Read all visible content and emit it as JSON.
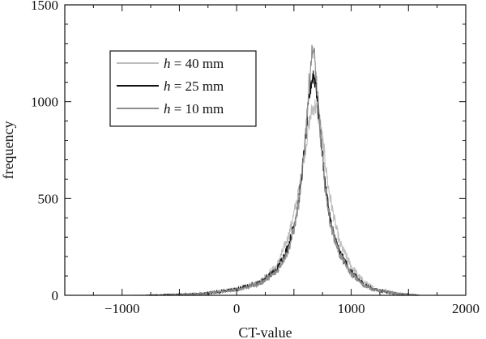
{
  "chart_data": {
    "type": "line",
    "title": "",
    "xlabel": "CT-value",
    "ylabel": "frequency",
    "xlim": [
      -1500,
      2000
    ],
    "ylim": [
      0,
      1500
    ],
    "xticks": [
      -1000,
      0,
      1000,
      2000
    ],
    "yticks": [
      0,
      500,
      1000,
      1500
    ],
    "x_tick_labels": [
      "−1000",
      "0",
      "1000",
      "2000"
    ],
    "y_tick_labels": [
      "0",
      "500",
      "1000",
      "1500"
    ],
    "grid": false,
    "legend_position": "top-left",
    "series": [
      {
        "label_var": "h",
        "label_rest": " = 40 mm",
        "color": "#bdbdbd",
        "peak_x": 680,
        "peak_y": 980,
        "x": [
          -900,
          -600,
          -300,
          0,
          200,
          350,
          450,
          500,
          550,
          600,
          630,
          660,
          680,
          700,
          730,
          760,
          800,
          850,
          900,
          1000,
          1100,
          1200,
          1400,
          1600
        ],
        "y": [
          0,
          3,
          8,
          30,
          70,
          150,
          300,
          420,
          560,
          760,
          880,
          960,
          980,
          960,
          880,
          760,
          560,
          400,
          270,
          150,
          75,
          35,
          10,
          0
        ]
      },
      {
        "label_var": "h",
        "label_rest": " = 25 mm",
        "color": "#111111",
        "peak_x": 670,
        "peak_y": 1140,
        "x": [
          -800,
          -600,
          -300,
          0,
          200,
          350,
          450,
          500,
          550,
          600,
          630,
          650,
          670,
          690,
          710,
          740,
          780,
          830,
          900,
          1000,
          1100,
          1200,
          1400,
          1600
        ],
        "y": [
          0,
          3,
          8,
          30,
          65,
          130,
          250,
          360,
          520,
          800,
          1000,
          1100,
          1140,
          1100,
          980,
          780,
          540,
          350,
          220,
          120,
          60,
          30,
          8,
          0
        ]
      },
      {
        "label_var": "h",
        "label_rest": " = 10 mm",
        "color": "#8e8e8e",
        "peak_x": 665,
        "peak_y": 1280,
        "x": [
          -700,
          -500,
          -300,
          0,
          200,
          350,
          450,
          500,
          550,
          600,
          630,
          650,
          665,
          680,
          700,
          730,
          770,
          820,
          900,
          1000,
          1100,
          1200,
          1400,
          1600
        ],
        "y": [
          0,
          3,
          8,
          28,
          60,
          120,
          230,
          340,
          500,
          820,
          1080,
          1220,
          1280,
          1230,
          1080,
          840,
          570,
          360,
          210,
          110,
          55,
          28,
          8,
          0
        ]
      }
    ]
  }
}
